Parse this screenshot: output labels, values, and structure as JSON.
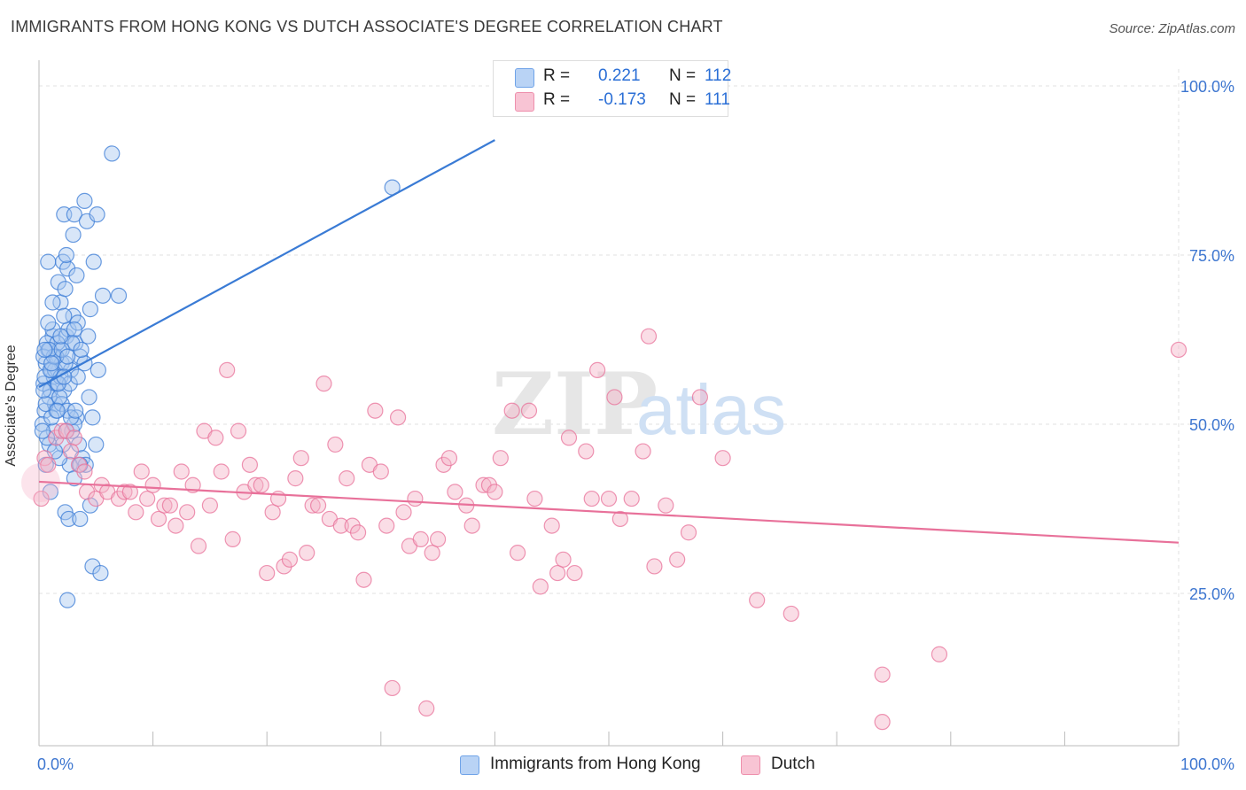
{
  "title": "IMMIGRANTS FROM HONG KONG VS DUTCH ASSOCIATE'S DEGREE CORRELATION CHART",
  "source": "Source: ZipAtlas.com",
  "watermark": {
    "zip": "ZIP",
    "atlas": "atlas"
  },
  "legend": {
    "r_label": "R =",
    "n_label": "N =",
    "rows": [
      {
        "name": "Immigrants from Hong Kong",
        "r": "0.221",
        "n": "112",
        "color": "#6fa3e8",
        "fill": "#b9d3f5"
      },
      {
        "name": "Dutch",
        "r": "-0.173",
        "n": "111",
        "color": "#ee8fac",
        "fill": "#f8c4d4"
      }
    ]
  },
  "chart_data": {
    "type": "scatter",
    "title": "IMMIGRANTS FROM HONG KONG VS DUTCH ASSOCIATE'S DEGREE CORRELATION CHART",
    "xlabel": "",
    "ylabel": "Associate's Degree",
    "xlim": [
      0,
      100
    ],
    "ylim": [
      0,
      100
    ],
    "x_tick_labels": [
      "0.0%",
      "100.0%"
    ],
    "y_tick_labels": [
      "25.0%",
      "50.0%",
      "75.0%",
      "100.0%"
    ],
    "y_ticks": [
      25,
      50,
      75,
      100
    ],
    "grid": true,
    "legend_position": "top-center",
    "series": [
      {
        "name": "Immigrants from Hong Kong",
        "color": "#3a7bd5",
        "fill": "#a9c8f0",
        "trend": {
          "x": [
            0,
            40
          ],
          "y": [
            55.5,
            92
          ]
        },
        "points": [
          [
            0.4,
            56
          ],
          [
            0.6,
            59
          ],
          [
            0.8,
            61
          ],
          [
            1,
            55
          ],
          [
            1.2,
            63
          ],
          [
            0.5,
            52
          ],
          [
            0.9,
            47
          ],
          [
            1.3,
            57
          ],
          [
            1.5,
            60
          ],
          [
            0.3,
            50
          ],
          [
            0.7,
            62
          ],
          [
            1.1,
            58
          ],
          [
            1.6,
            56
          ],
          [
            1.8,
            61
          ],
          [
            2,
            59
          ],
          [
            2.2,
            55
          ],
          [
            2.4,
            63
          ],
          [
            1.4,
            53
          ],
          [
            0.6,
            44
          ],
          [
            1,
            40
          ],
          [
            2.6,
            64
          ],
          [
            2.8,
            58
          ],
          [
            3,
            66
          ],
          [
            3.2,
            62
          ],
          [
            3.4,
            65
          ],
          [
            3.6,
            60
          ],
          [
            1.7,
            71
          ],
          [
            1.9,
            68
          ],
          [
            2.1,
            74
          ],
          [
            2.5,
            73
          ],
          [
            0.8,
            74
          ],
          [
            1.2,
            68
          ],
          [
            2.3,
            70
          ],
          [
            3.1,
            64
          ],
          [
            3.3,
            72
          ],
          [
            4,
            59
          ],
          [
            4.3,
            63
          ],
          [
            4.5,
            67
          ],
          [
            4.8,
            74
          ],
          [
            5.2,
            58
          ],
          [
            5.6,
            69
          ],
          [
            2.2,
            81
          ],
          [
            3.1,
            81
          ],
          [
            4,
            83
          ],
          [
            4.2,
            80
          ],
          [
            5.1,
            81
          ],
          [
            2.4,
            75
          ],
          [
            3,
            78
          ],
          [
            1.5,
            52
          ],
          [
            2,
            53
          ],
          [
            2.5,
            52
          ],
          [
            2.9,
            49
          ],
          [
            3.3,
            51
          ],
          [
            3.5,
            47
          ],
          [
            3.8,
            45
          ],
          [
            4.1,
            44
          ],
          [
            4.4,
            54
          ],
          [
            4.7,
            51
          ],
          [
            5,
            47
          ],
          [
            2.7,
            44
          ],
          [
            3.1,
            42
          ],
          [
            4.5,
            38
          ],
          [
            2.3,
            37
          ],
          [
            2.6,
            36
          ],
          [
            3.6,
            36
          ],
          [
            4.7,
            29
          ],
          [
            5.4,
            28
          ],
          [
            2.5,
            24
          ],
          [
            1.3,
            49
          ],
          [
            1.8,
            45
          ],
          [
            2.1,
            47
          ],
          [
            0.5,
            57
          ],
          [
            0.9,
            54
          ],
          [
            1.4,
            58
          ],
          [
            1.9,
            57
          ],
          [
            2.3,
            59
          ],
          [
            0.7,
            48
          ],
          [
            1.1,
            51
          ],
          [
            1.6,
            62
          ],
          [
            0.4,
            60
          ],
          [
            1.2,
            64
          ],
          [
            2.9,
            62
          ],
          [
            3.7,
            61
          ],
          [
            0.8,
            65
          ],
          [
            2.2,
            66
          ],
          [
            1.5,
            60
          ],
          [
            0.6,
            53
          ],
          [
            1,
            58
          ],
          [
            1.8,
            54
          ],
          [
            2.7,
            56
          ],
          [
            3.4,
            57
          ],
          [
            0.3,
            49
          ],
          [
            1.4,
            46
          ],
          [
            2.4,
            49
          ],
          [
            3.1,
            50
          ],
          [
            1.3,
            60
          ],
          [
            0.9,
            61
          ],
          [
            2,
            61
          ],
          [
            1.7,
            56
          ],
          [
            2.8,
            51
          ],
          [
            3.6,
            44
          ],
          [
            0.5,
            61
          ],
          [
            1.1,
            59
          ],
          [
            1.9,
            63
          ],
          [
            2.5,
            60
          ],
          [
            3.2,
            52
          ],
          [
            0.4,
            55
          ],
          [
            1.6,
            52
          ],
          [
            2.2,
            57
          ],
          [
            31,
            85
          ],
          [
            6.4,
            90
          ],
          [
            7,
            69
          ]
        ]
      },
      {
        "name": "Dutch",
        "color": "#e8719a",
        "fill": "#f5b3c8",
        "trend": {
          "x": [
            0,
            100
          ],
          "y": [
            41.5,
            32.5
          ]
        },
        "points": [
          [
            0.2,
            39
          ],
          [
            0.5,
            45
          ],
          [
            1.5,
            48
          ],
          [
            2,
            49
          ],
          [
            2.4,
            49
          ],
          [
            3.1,
            48
          ],
          [
            3.5,
            44
          ],
          [
            4,
            43
          ],
          [
            4.2,
            40
          ],
          [
            5,
            39
          ],
          [
            5.5,
            41
          ],
          [
            6,
            40
          ],
          [
            7,
            39
          ],
          [
            7.5,
            40
          ],
          [
            8,
            40
          ],
          [
            8.5,
            37
          ],
          [
            9,
            43
          ],
          [
            9.5,
            39
          ],
          [
            10,
            41
          ],
          [
            10.5,
            36
          ],
          [
            11,
            38
          ],
          [
            11.5,
            38
          ],
          [
            12,
            35
          ],
          [
            12.5,
            43
          ],
          [
            13,
            37
          ],
          [
            13.5,
            41
          ],
          [
            14,
            32
          ],
          [
            14.5,
            49
          ],
          [
            15,
            38
          ],
          [
            15.5,
            48
          ],
          [
            16,
            43
          ],
          [
            16.5,
            58
          ],
          [
            17,
            33
          ],
          [
            17.5,
            49
          ],
          [
            18,
            40
          ],
          [
            18.5,
            44
          ],
          [
            19,
            41
          ],
          [
            19.5,
            41
          ],
          [
            20,
            28
          ],
          [
            20.5,
            37
          ],
          [
            21,
            39
          ],
          [
            21.5,
            29
          ],
          [
            22,
            30
          ],
          [
            22.5,
            42
          ],
          [
            23,
            45
          ],
          [
            23.5,
            31
          ],
          [
            24,
            38
          ],
          [
            24.5,
            38
          ],
          [
            25,
            56
          ],
          [
            25.5,
            36
          ],
          [
            26,
            47
          ],
          [
            26.5,
            35
          ],
          [
            27,
            42
          ],
          [
            27.5,
            35
          ],
          [
            28,
            34
          ],
          [
            28.5,
            27
          ],
          [
            29,
            44
          ],
          [
            29.5,
            52
          ],
          [
            30,
            43
          ],
          [
            30.5,
            35
          ],
          [
            31,
            11
          ],
          [
            31.5,
            51
          ],
          [
            32,
            37
          ],
          [
            32.5,
            32
          ],
          [
            33,
            39
          ],
          [
            33.5,
            33
          ],
          [
            34,
            8
          ],
          [
            34.5,
            31
          ],
          [
            35,
            33
          ],
          [
            35.5,
            44
          ],
          [
            36,
            45
          ],
          [
            36.5,
            40
          ],
          [
            37.5,
            38
          ],
          [
            38,
            35
          ],
          [
            39,
            41
          ],
          [
            39.5,
            41
          ],
          [
            40,
            40
          ],
          [
            40.5,
            45
          ],
          [
            41.5,
            52
          ],
          [
            42,
            31
          ],
          [
            43,
            52
          ],
          [
            43.5,
            39
          ],
          [
            44,
            26
          ],
          [
            45,
            35
          ],
          [
            45.5,
            28
          ],
          [
            46,
            30
          ],
          [
            46.5,
            48
          ],
          [
            47,
            28
          ],
          [
            48,
            46
          ],
          [
            48.5,
            39
          ],
          [
            49,
            58
          ],
          [
            50,
            39
          ],
          [
            50.5,
            54
          ],
          [
            51,
            36
          ],
          [
            52,
            39
          ],
          [
            53,
            46
          ],
          [
            53.5,
            63
          ],
          [
            54,
            29
          ],
          [
            55,
            38
          ],
          [
            56,
            30
          ],
          [
            57,
            34
          ],
          [
            58,
            54
          ],
          [
            60,
            45
          ],
          [
            63,
            24
          ],
          [
            66,
            22
          ],
          [
            74,
            6
          ],
          [
            74,
            13
          ],
          [
            79,
            16
          ],
          [
            100,
            61
          ],
          [
            0.8,
            44
          ],
          [
            2.8,
            46
          ]
        ]
      }
    ]
  }
}
